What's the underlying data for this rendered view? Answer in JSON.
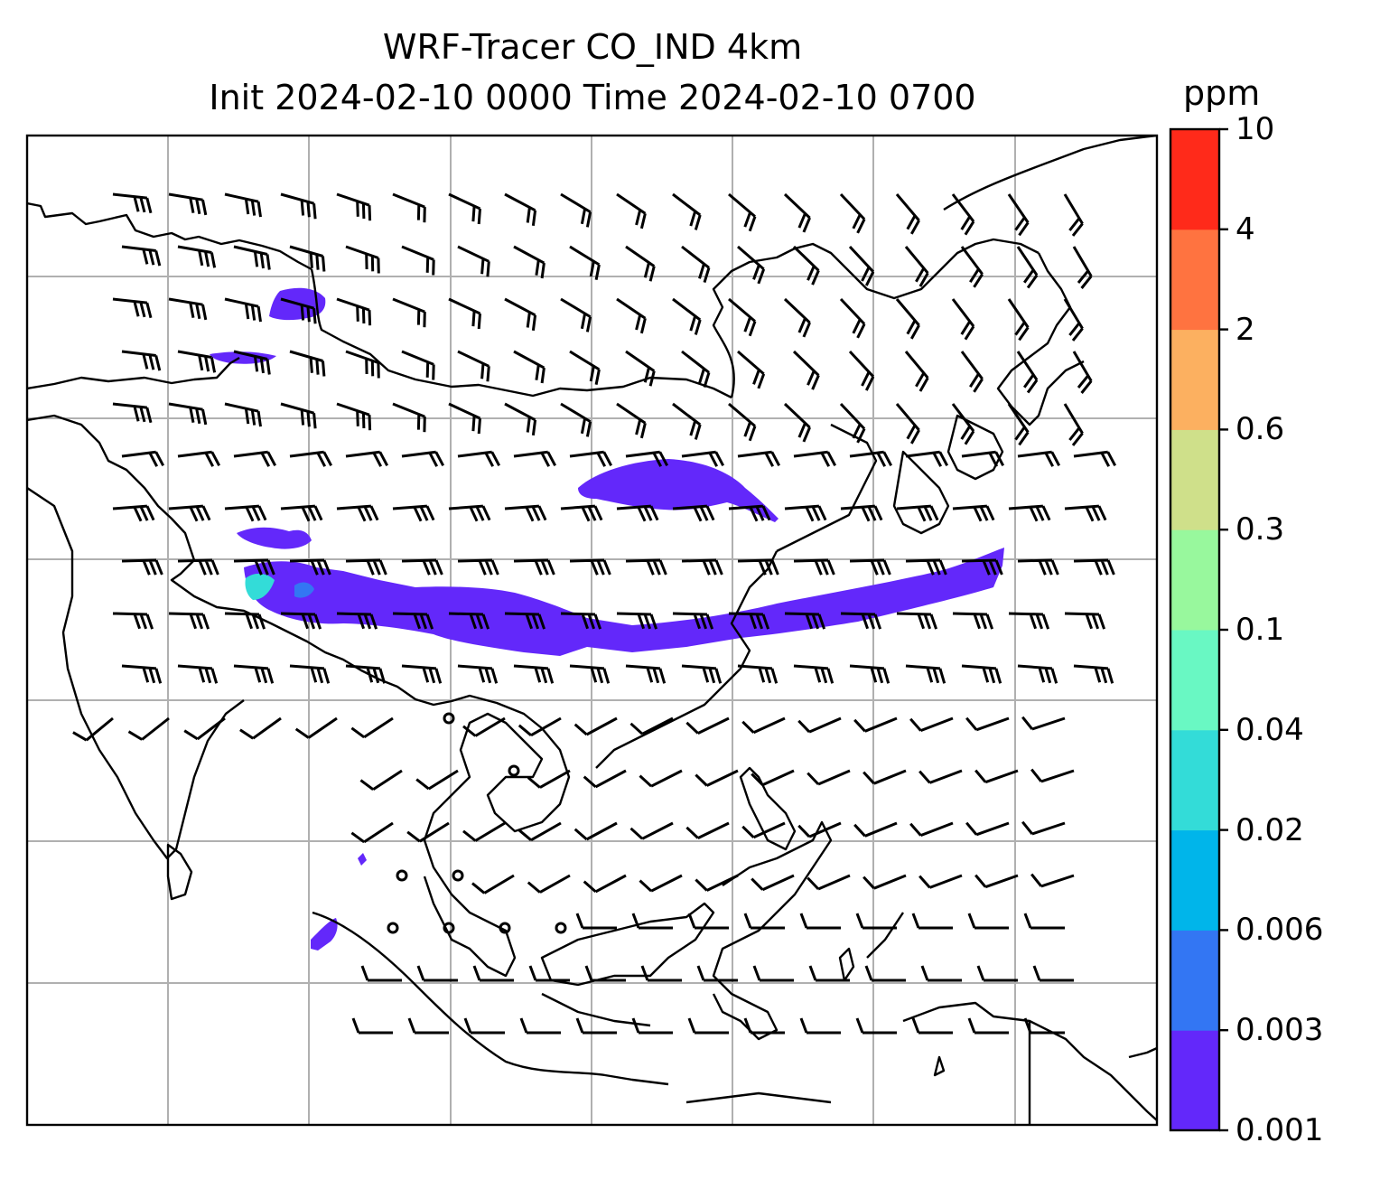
{
  "title_line1": "WRF-Tracer CO_IND 4km",
  "title_line2": "Init 2024-02-10 0000 Time 2024-02-10 0700",
  "colorbar": {
    "units": "ppm",
    "levels": [
      "0.001",
      "0.003",
      "0.006",
      "0.02",
      "0.04",
      "0.1",
      "0.3",
      "0.6",
      "2",
      "4",
      "10"
    ],
    "colors": [
      "#6328fa",
      "#3376f3",
      "#00b5ea",
      "#33dcd8",
      "#69f8c3",
      "#98f89d",
      "#cfe08a",
      "#fcb060",
      "#ff7340",
      "#ff2a1a"
    ]
  },
  "map": {
    "fields": {
      "tracer_fill_color": "#6328fa",
      "tracer_high_color": "#33dcd8",
      "coastline_color": "#000000",
      "gridline_color": "#b0b0b0"
    },
    "wind_barbs": "grid of wind barbs over domain",
    "calm_markers": "small circles indicating calm wind"
  }
}
